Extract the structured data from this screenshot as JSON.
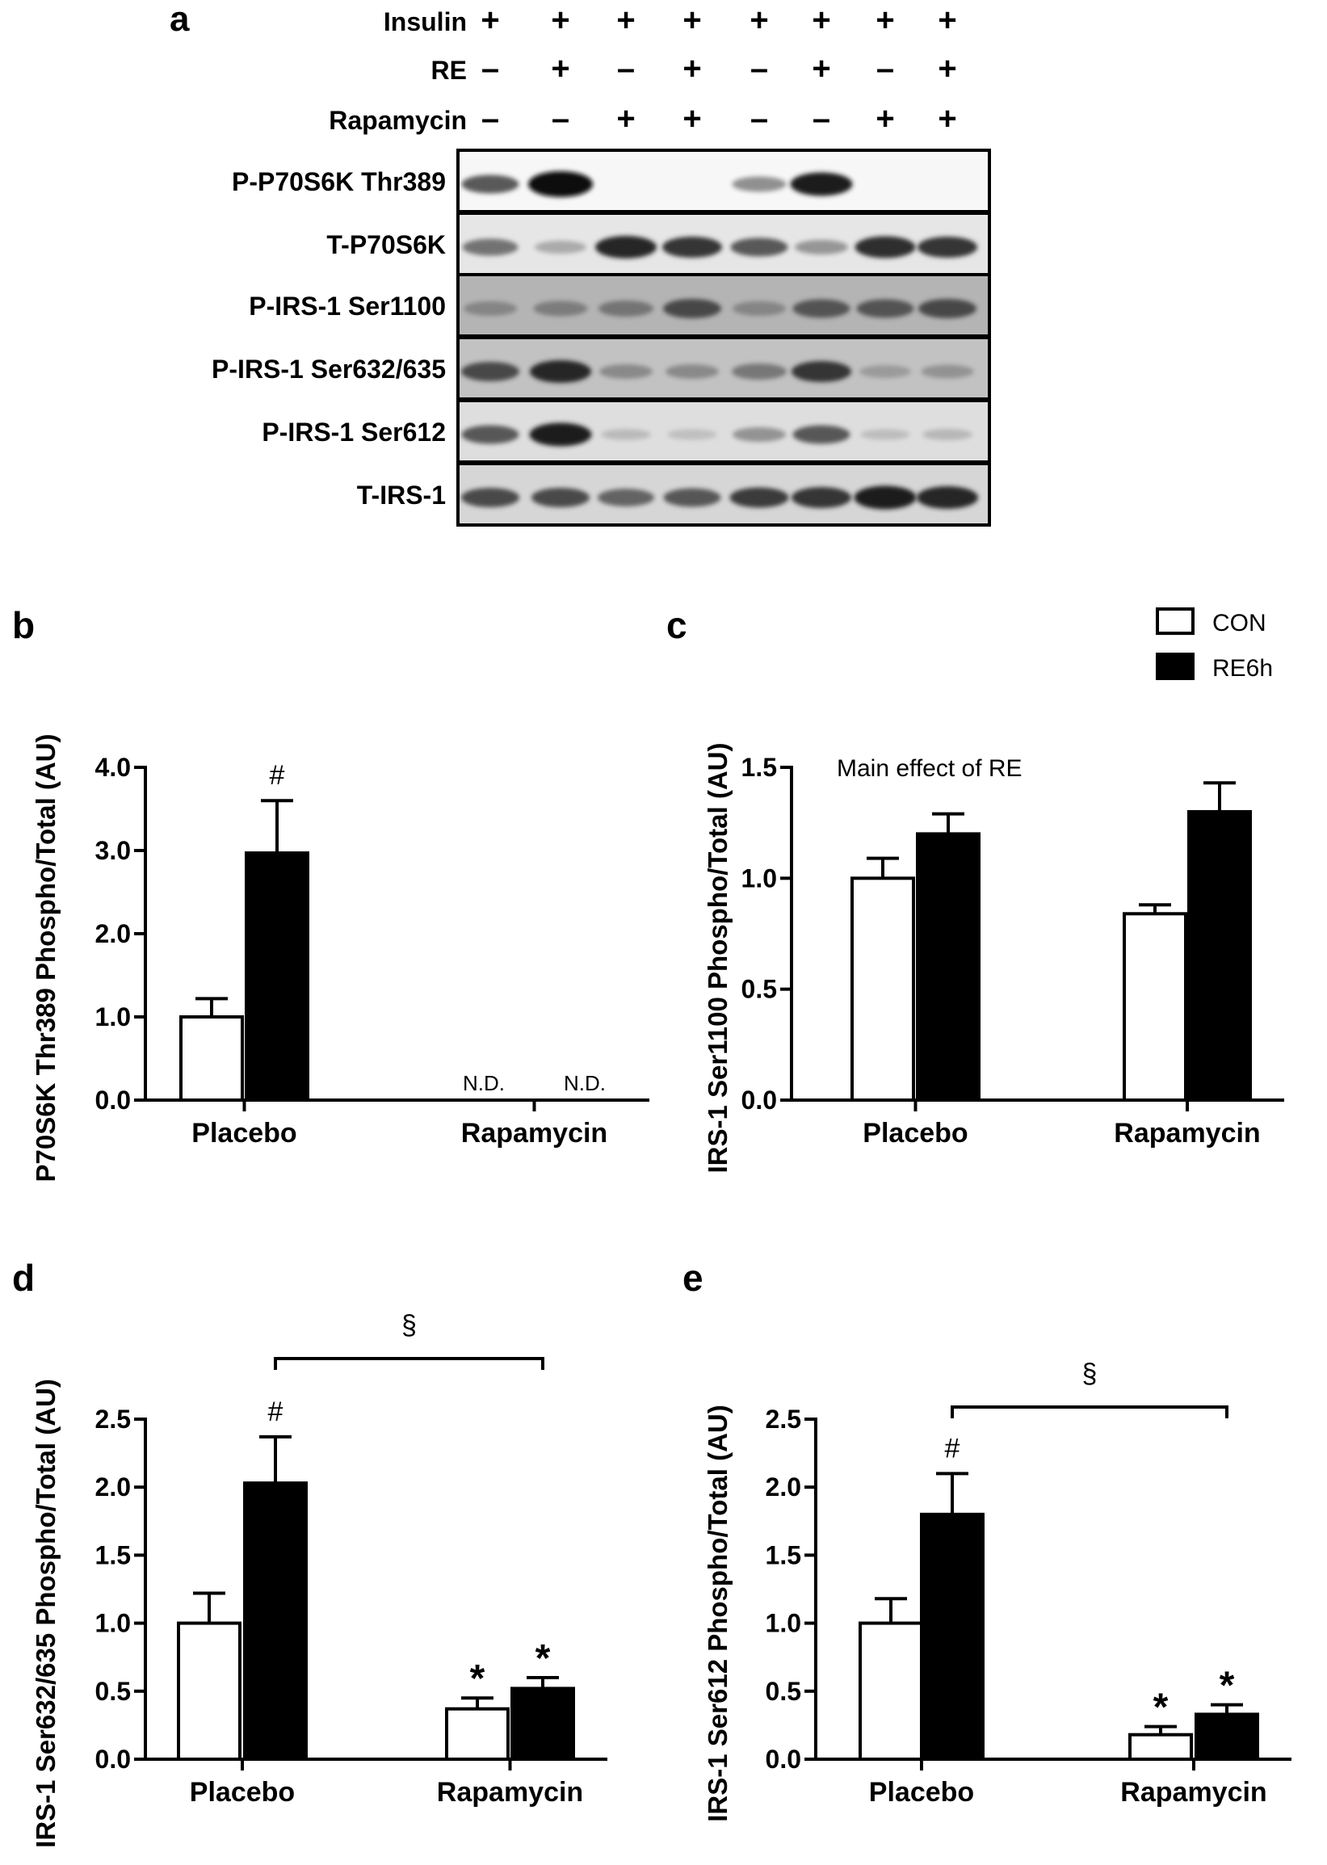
{
  "blot": {
    "panel_label": "a",
    "treatments": [
      {
        "label": "Insulin",
        "signs": [
          "+",
          "+",
          "+",
          "+",
          "+",
          "+",
          "+",
          "+"
        ]
      },
      {
        "label": "RE",
        "signs": [
          "–",
          "+",
          "–",
          "+",
          "–",
          "+",
          "–",
          "+"
        ]
      },
      {
        "label": "Rapamycin",
        "signs": [
          "–",
          "–",
          "+",
          "+",
          "–",
          "–",
          "+",
          "+"
        ]
      }
    ],
    "rows": [
      {
        "label": "P-P70S6K Thr389",
        "bg": "#f7f7f7",
        "bands": [
          0.55,
          1.0,
          0,
          0,
          0.35,
          0.85,
          0,
          0
        ]
      },
      {
        "label": "T-P70S6K",
        "bg": "#e6e6e6",
        "bands": [
          0.45,
          0.2,
          0.8,
          0.7,
          0.55,
          0.3,
          0.75,
          0.7
        ]
      },
      {
        "label": "P-IRS-1 Ser1100",
        "bg": "#b4b4b4",
        "bands": [
          0.3,
          0.35,
          0.4,
          0.6,
          0.3,
          0.55,
          0.55,
          0.6
        ]
      },
      {
        "label": "P-IRS-1 Ser632/635",
        "bg": "#c2c2c2",
        "bands": [
          0.6,
          0.8,
          0.3,
          0.3,
          0.4,
          0.7,
          0.2,
          0.25
        ]
      },
      {
        "label": "P-IRS-1 Ser612",
        "bg": "#dedede",
        "bands": [
          0.55,
          0.85,
          0.08,
          0.05,
          0.3,
          0.55,
          0.06,
          0.1
        ]
      },
      {
        "label": "T-IRS-1",
        "bg": "#d6d6d6",
        "bands": [
          0.6,
          0.6,
          0.5,
          0.55,
          0.65,
          0.7,
          0.85,
          0.8
        ]
      }
    ]
  },
  "legend": [
    {
      "name": "CON",
      "fill": "#ffffff"
    },
    {
      "name": "RE6h",
      "fill": "#000000"
    }
  ],
  "chart_data": [
    {
      "panel": "b",
      "type": "bar",
      "categories": [
        "Placebo",
        "Rapamycin"
      ],
      "series": [
        {
          "name": "CON",
          "values": [
            1.0,
            null
          ],
          "errors": [
            0.22,
            null
          ]
        },
        {
          "name": "RE6h",
          "values": [
            2.97,
            null
          ],
          "errors": [
            0.63,
            null
          ]
        }
      ],
      "ylabel": "P70S6K Thr389 Phospho/Total (AU)",
      "ylim": [
        0,
        4.0
      ],
      "yticks": [
        "0.0",
        "1.0",
        "2.0",
        "3.0",
        "4.0"
      ],
      "annotations": {
        "marks": [
          {
            "cat": 0,
            "series": 1,
            "text": "#"
          }
        ],
        "nd": [
          {
            "cat": 1,
            "series": 0,
            "text": "N.D."
          },
          {
            "cat": 1,
            "series": 1,
            "text": "N.D."
          }
        ]
      }
    },
    {
      "panel": "c",
      "type": "bar",
      "categories": [
        "Placebo",
        "Rapamycin"
      ],
      "series": [
        {
          "name": "CON",
          "values": [
            1.0,
            0.84
          ],
          "errors": [
            0.09,
            0.04
          ]
        },
        {
          "name": "RE6h",
          "values": [
            1.2,
            1.3
          ],
          "errors": [
            0.09,
            0.13
          ]
        }
      ],
      "ylabel": "IRS-1 Ser1100 Phospho/Total (AU)",
      "ylim": [
        0,
        1.5
      ],
      "yticks": [
        "0.0",
        "0.5",
        "1.0",
        "1.5"
      ],
      "note": "Main effect of RE"
    },
    {
      "panel": "d",
      "type": "bar",
      "categories": [
        "Placebo",
        "Rapamycin"
      ],
      "series": [
        {
          "name": "CON",
          "values": [
            1.0,
            0.37
          ],
          "errors": [
            0.22,
            0.08
          ]
        },
        {
          "name": "RE6h",
          "values": [
            2.03,
            0.52
          ],
          "errors": [
            0.34,
            0.08
          ]
        }
      ],
      "ylabel": "IRS-1 Ser632/635 Phospho/Total (AU)",
      "ylim": [
        0,
        2.5
      ],
      "yticks": [
        "0.0",
        "0.5",
        "1.0",
        "1.5",
        "2.0",
        "2.5"
      ],
      "annotations": {
        "marks": [
          {
            "cat": 0,
            "series": 1,
            "text": "#"
          },
          {
            "cat": 1,
            "series": 0,
            "text": "*"
          },
          {
            "cat": 1,
            "series": 1,
            "text": "*"
          }
        ]
      },
      "bracket": {
        "text": "§"
      }
    },
    {
      "panel": "e",
      "type": "bar",
      "categories": [
        "Placebo",
        "Rapamycin"
      ],
      "series": [
        {
          "name": "CON",
          "values": [
            1.0,
            0.18
          ],
          "errors": [
            0.18,
            0.06
          ]
        },
        {
          "name": "RE6h",
          "values": [
            1.8,
            0.33
          ],
          "errors": [
            0.3,
            0.07
          ]
        }
      ],
      "ylabel": "IRS-1 Ser612 Phospho/Total (AU)",
      "ylim": [
        0,
        2.5
      ],
      "yticks": [
        "0.0",
        "0.5",
        "1.0",
        "1.5",
        "2.0",
        "2.5"
      ],
      "annotations": {
        "marks": [
          {
            "cat": 0,
            "series": 1,
            "text": "#"
          },
          {
            "cat": 1,
            "series": 0,
            "text": "*"
          },
          {
            "cat": 1,
            "series": 1,
            "text": "*"
          }
        ]
      },
      "bracket": {
        "text": "§"
      }
    }
  ]
}
